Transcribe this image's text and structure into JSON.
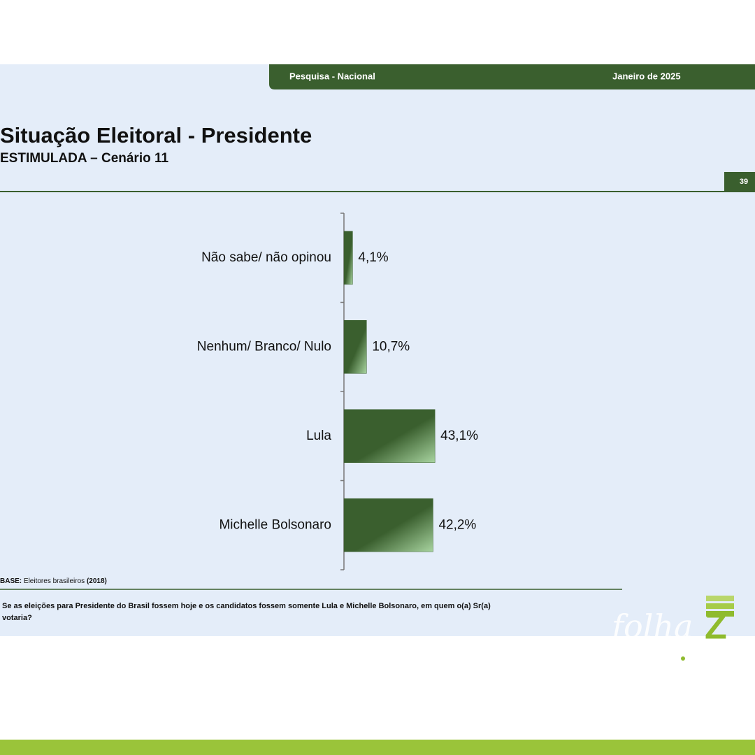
{
  "header": {
    "left": "Pesquisa - Nacional",
    "right": "Janeiro de 2025",
    "page_number": "39"
  },
  "chart_data": {
    "type": "hbar",
    "title": "Situação Eleitoral - Presidente",
    "subtitle": "ESTIMULADA – Cenário 11",
    "categories": [
      "Não sabe/ não opinou",
      "Nenhum/ Branco/ Nulo",
      "Lula",
      "Michelle Bolsonaro"
    ],
    "values": [
      4.1,
      10.7,
      43.1,
      42.2
    ],
    "value_labels": [
      "4,1%",
      "10,7%",
      "43,1%",
      "42,2%"
    ],
    "color": "#3a5f2e"
  },
  "footer": {
    "base_label": "BASE:",
    "base_text": "Eleitores brasileiros",
    "base_year": "(2018)",
    "question": [
      "Se as eleições para Presidente do Brasil fossem hoje e os candidatos fossem somente Lula e Michelle Bolsonaro, em quem o(a) Sr(a)",
      "votaria?"
    ]
  },
  "logo": {
    "text": "folha",
    "letter": "Z"
  }
}
